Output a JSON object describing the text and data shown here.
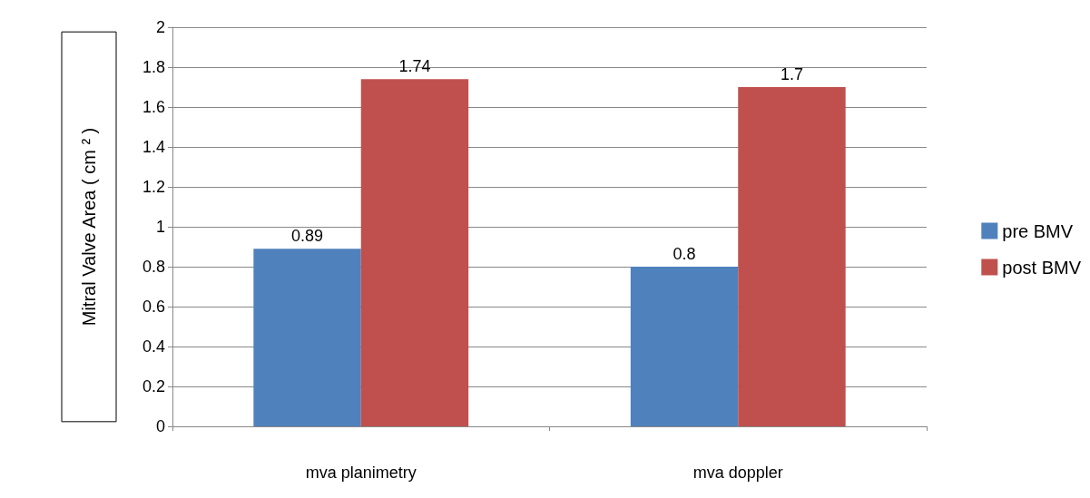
{
  "chart_data": {
    "type": "bar",
    "ylabel": "Mitral Valve Area ( cm ² )",
    "categories": [
      "mva planimetry",
      "mva doppler"
    ],
    "series": [
      {
        "name": "pre BMV",
        "color": "#4f81bd",
        "values": [
          0.89,
          0.8
        ]
      },
      {
        "name": "post BMV",
        "color": "#c0504d",
        "values": [
          1.74,
          1.7
        ]
      }
    ],
    "ylim": [
      0,
      2
    ],
    "yticks": [
      0,
      0.2,
      0.4,
      0.6,
      0.8,
      1,
      1.2,
      1.4,
      1.6,
      1.8,
      2
    ],
    "grid": "y",
    "legend": "right",
    "data_labels": true
  }
}
